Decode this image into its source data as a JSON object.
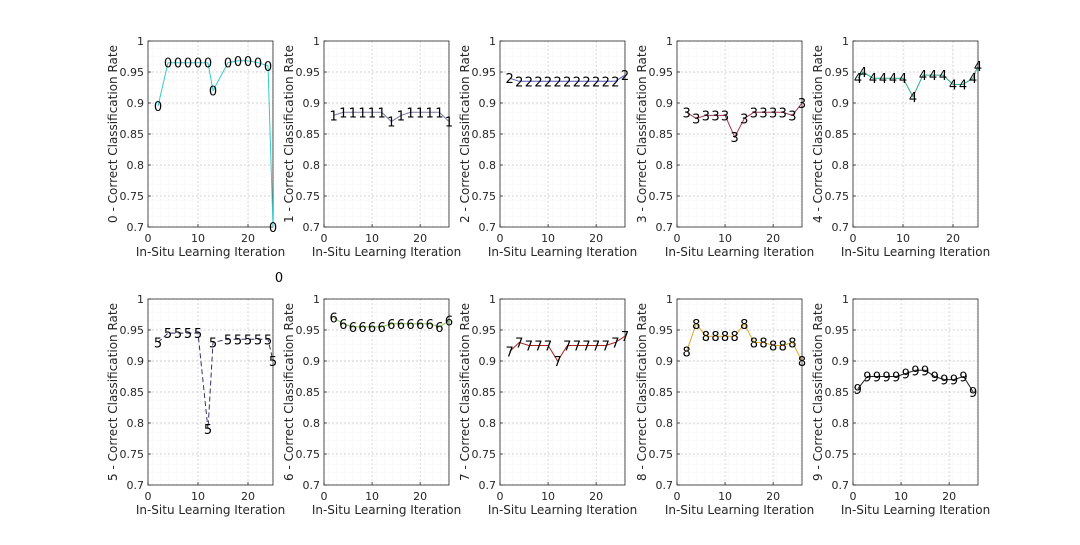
{
  "chart_data": [
    {
      "type": "line",
      "digit": "0",
      "marker_label": "0",
      "color": "#33cccc",
      "dashed": false,
      "xlabel": "In-Situ Learning Iteration",
      "ylabel": "0 - Correct Classification Rate",
      "xlim": [
        0,
        25
      ],
      "ylim": [
        0.7,
        1
      ],
      "xticks": [
        0,
        10,
        20
      ],
      "yticks": [
        "0.7",
        "0.75",
        "0.8",
        "0.85",
        "0.9",
        "0.95",
        "1"
      ],
      "x": [
        2,
        4,
        6,
        8,
        10,
        12,
        13,
        16,
        18,
        20,
        22,
        24,
        25
      ],
      "y": [
        0.895,
        0.965,
        0.965,
        0.965,
        0.965,
        0.965,
        0.92,
        0.965,
        0.968,
        0.968,
        0.965,
        0.96,
        0.7
      ]
    },
    {
      "type": "line",
      "digit": "1",
      "marker_label": "1",
      "color": "#7a7aa0",
      "dashed": false,
      "xlabel": "In-Situ Learning Iteration",
      "ylabel": "1 - Correct Classification Rate",
      "xlim": [
        0,
        26
      ],
      "ylim": [
        0.7,
        1
      ],
      "xticks": [
        0,
        10,
        20
      ],
      "yticks": [
        "0.7",
        "0.75",
        "0.8",
        "0.85",
        "0.9",
        "0.95",
        "1"
      ],
      "x": [
        2,
        4,
        6,
        8,
        10,
        12,
        14,
        16,
        18,
        20,
        22,
        24,
        26
      ],
      "y": [
        0.88,
        0.885,
        0.885,
        0.885,
        0.885,
        0.885,
        0.87,
        0.88,
        0.885,
        0.885,
        0.885,
        0.885,
        0.87
      ]
    },
    {
      "type": "line",
      "digit": "2",
      "marker_label": "2",
      "color": "#5555bb",
      "dashed": false,
      "xlabel": "In-Situ Learning Iteration",
      "ylabel": "2 - Correct Classification Rate",
      "xlim": [
        0,
        26
      ],
      "ylim": [
        0.7,
        1
      ],
      "xticks": [
        0,
        10,
        20
      ],
      "yticks": [
        "0.7",
        "0.75",
        "0.8",
        "0.85",
        "0.9",
        "0.95",
        "1"
      ],
      "x": [
        2,
        4,
        6,
        8,
        10,
        12,
        14,
        16,
        18,
        20,
        22,
        24,
        26
      ],
      "y": [
        0.94,
        0.935,
        0.935,
        0.935,
        0.935,
        0.935,
        0.935,
        0.935,
        0.935,
        0.935,
        0.935,
        0.935,
        0.945
      ]
    },
    {
      "type": "line",
      "digit": "3",
      "marker_label": "3",
      "color": "#aa3355",
      "dashed": false,
      "xlabel": "In-Situ Learning Iteration",
      "ylabel": "3 - Correct Classification Rate",
      "xlim": [
        0,
        26
      ],
      "ylim": [
        0.7,
        1
      ],
      "xticks": [
        0,
        10,
        20
      ],
      "yticks": [
        "0.7",
        "0.75",
        "0.8",
        "0.85",
        "0.9",
        "0.95",
        "1"
      ],
      "x": [
        2,
        4,
        6,
        8,
        10,
        12,
        14,
        16,
        18,
        20,
        22,
        24,
        26
      ],
      "y": [
        0.885,
        0.875,
        0.88,
        0.88,
        0.88,
        0.845,
        0.875,
        0.885,
        0.885,
        0.885,
        0.885,
        0.88,
        0.9
      ]
    },
    {
      "type": "line",
      "digit": "4",
      "marker_label": "4",
      "color": "#22aa88",
      "dashed": false,
      "xlabel": "In-Situ Learning Iteration",
      "ylabel": "4 - Correct Classification Rate",
      "xlim": [
        0,
        25
      ],
      "ylim": [
        0.7,
        1
      ],
      "xticks": [
        0,
        10,
        20
      ],
      "yticks": [
        "0.7",
        "0.75",
        "0.8",
        "0.85",
        "0.9",
        "0.95",
        "1"
      ],
      "x": [
        1,
        2,
        4,
        6,
        8,
        10,
        12,
        14,
        16,
        18,
        20,
        22,
        24,
        25
      ],
      "y": [
        0.94,
        0.95,
        0.94,
        0.94,
        0.94,
        0.94,
        0.91,
        0.945,
        0.945,
        0.945,
        0.93,
        0.93,
        0.94,
        0.96
      ]
    },
    {
      "type": "line",
      "digit": "5",
      "marker_label": "5",
      "color": "#333366",
      "dashed": true,
      "xlabel": "In-Situ Learning Iteration",
      "ylabel": "5 - Correct Classification Rate",
      "xlim": [
        0,
        25
      ],
      "ylim": [
        0.7,
        1
      ],
      "xticks": [
        0,
        10,
        20
      ],
      "yticks": [
        "0.7",
        "0.75",
        "0.8",
        "0.85",
        "0.9",
        "0.95",
        "1"
      ],
      "x": [
        2,
        4,
        6,
        8,
        10,
        12,
        13,
        16,
        18,
        20,
        22,
        24,
        25
      ],
      "y": [
        0.93,
        0.945,
        0.945,
        0.945,
        0.945,
        0.79,
        0.93,
        0.935,
        0.935,
        0.935,
        0.935,
        0.935,
        0.9
      ],
      "extra_label": "0"
    },
    {
      "type": "line",
      "digit": "6",
      "marker_label": "6",
      "color": "#88cc44",
      "dashed": false,
      "xlabel": "In-Situ Learning Iteration",
      "ylabel": "6 - Correct Classification Rate",
      "xlim": [
        0,
        26
      ],
      "ylim": [
        0.7,
        1
      ],
      "xticks": [
        0,
        10,
        20
      ],
      "yticks": [
        "0.7",
        "0.75",
        "0.8",
        "0.85",
        "0.9",
        "0.95",
        "1"
      ],
      "x": [
        2,
        4,
        6,
        8,
        10,
        12,
        14,
        16,
        18,
        20,
        22,
        24,
        26
      ],
      "y": [
        0.97,
        0.96,
        0.955,
        0.955,
        0.955,
        0.955,
        0.96,
        0.96,
        0.96,
        0.96,
        0.96,
        0.955,
        0.965
      ]
    },
    {
      "type": "line",
      "digit": "7",
      "marker_label": "7",
      "color": "#aa2222",
      "dashed": false,
      "xlabel": "In-Situ Learning Iteration",
      "ylabel": "7 - Correct Classification Rate",
      "xlim": [
        0,
        26
      ],
      "ylim": [
        0.7,
        1
      ],
      "xticks": [
        0,
        10,
        20
      ],
      "yticks": [
        "0.7",
        "0.75",
        "0.8",
        "0.85",
        "0.9",
        "0.95",
        "1"
      ],
      "x": [
        2,
        4,
        6,
        8,
        10,
        12,
        14,
        16,
        18,
        20,
        22,
        24,
        26
      ],
      "y": [
        0.915,
        0.93,
        0.925,
        0.925,
        0.925,
        0.9,
        0.925,
        0.925,
        0.925,
        0.925,
        0.925,
        0.93,
        0.94
      ]
    },
    {
      "type": "line",
      "digit": "8",
      "marker_label": "8",
      "color": "#ddaa22",
      "dashed": false,
      "xlabel": "In-Situ Learning Iteration",
      "ylabel": "8 - Correct Classification Rate",
      "xlim": [
        0,
        26
      ],
      "ylim": [
        0.7,
        1
      ],
      "xticks": [
        0,
        10,
        20
      ],
      "yticks": [
        "0.7",
        "0.75",
        "0.8",
        "0.85",
        "0.9",
        "0.95",
        "1"
      ],
      "x": [
        2,
        4,
        6,
        8,
        10,
        12,
        14,
        16,
        18,
        20,
        22,
        24,
        26
      ],
      "y": [
        0.915,
        0.96,
        0.94,
        0.94,
        0.94,
        0.94,
        0.96,
        0.93,
        0.93,
        0.925,
        0.925,
        0.93,
        0.9
      ]
    },
    {
      "type": "line",
      "digit": "9",
      "marker_label": "9",
      "color": "#222222",
      "dashed": false,
      "xlabel": "In-Situ Learning Iteration",
      "ylabel": "9 - Correct Classification Rate",
      "xlim": [
        0,
        26
      ],
      "ylim": [
        0.7,
        1
      ],
      "xticks": [
        0,
        10,
        20
      ],
      "yticks": [
        "0.7",
        "0.75",
        "0.8",
        "0.85",
        "0.9",
        "0.95",
        "1"
      ],
      "x": [
        1,
        3,
        5,
        7,
        9,
        11,
        13,
        15,
        17,
        19,
        21,
        23,
        25
      ],
      "y": [
        0.855,
        0.875,
        0.875,
        0.875,
        0.875,
        0.88,
        0.885,
        0.885,
        0.875,
        0.87,
        0.87,
        0.875,
        0.85
      ]
    }
  ]
}
